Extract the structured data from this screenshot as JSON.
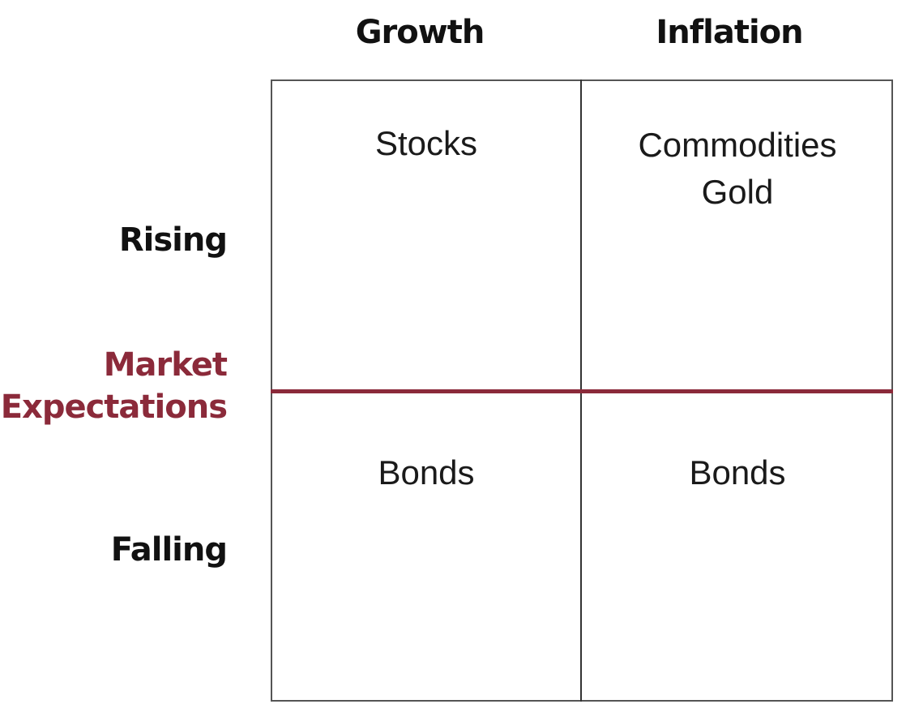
{
  "columns": {
    "growth": "Growth",
    "inflation": "Inflation"
  },
  "rows": {
    "rising": "Rising",
    "falling": "Falling"
  },
  "divider_label": {
    "line1": "Market",
    "line2": "Expectations"
  },
  "cells": {
    "rising_growth": [
      "Stocks"
    ],
    "rising_inflation": [
      "Commodities",
      "Gold"
    ],
    "falling_growth": [
      "Bonds"
    ],
    "falling_inflation": [
      "Bonds"
    ]
  },
  "colors": {
    "accent": "#8b2a3a",
    "text": "#1a1a1a",
    "grid": "#555555"
  }
}
